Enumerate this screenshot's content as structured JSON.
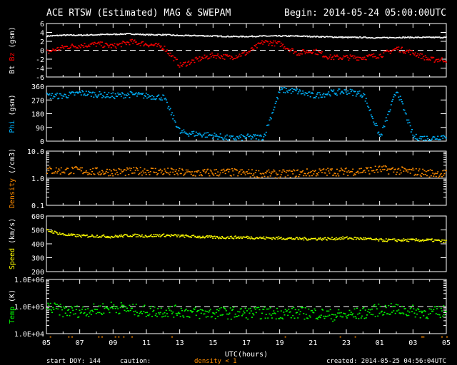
{
  "header": {
    "title": "ACE RTSW (Estimated) MAG & SWEPAM",
    "begin": "Begin: 2014-05-24 05:00:00UTC"
  },
  "footer": {
    "start_doy": "start DOY: 144",
    "caution": "caution:",
    "caution_value": "density < 1",
    "created": "created: 2014-05-25 04:56:04UTC"
  },
  "colors": {
    "bt": "#ffffff",
    "bz": "#ff0000",
    "phi": "#00b4ff",
    "density": "#ff8c00",
    "speed": "#ffff00",
    "temp": "#00ff00"
  },
  "chart_data": [
    {
      "type": "scatter",
      "name": "magnetic-field",
      "ylabel_parts": [
        "Bt",
        "Bz",
        "(gsm)"
      ],
      "ylim": [
        -6,
        6
      ],
      "yticks": [
        "6",
        "4",
        "2",
        "0",
        "-2",
        "-4",
        "-6"
      ],
      "ytick_values": [
        6,
        4,
        2,
        0,
        -2,
        -4,
        -6
      ],
      "reference_line": 0,
      "series": [
        {
          "name": "Bt",
          "color": "#ffffff",
          "hourly": [
            3.3,
            3.5,
            3.5,
            3.6,
            3.7,
            3.8,
            3.6,
            3.6,
            3.4,
            3.4,
            3.3,
            3.2,
            3.2,
            3.3,
            3.3,
            3.3,
            3.2,
            3.1,
            3.0,
            3.0,
            2.9,
            3.0,
            3.0,
            3.0,
            3.0
          ]
        },
        {
          "name": "Bz",
          "color": "#ff0000",
          "hourly": [
            -0.3,
            0.8,
            1.2,
            1.5,
            1.0,
            2.0,
            1.5,
            0.8,
            -3.3,
            -2.0,
            -1.0,
            -1.5,
            -0.5,
            2.0,
            1.5,
            -0.5,
            0.0,
            -1.5,
            -1.5,
            -1.5,
            -1.0,
            0.5,
            -0.5,
            -2.0,
            -2.0
          ]
        }
      ]
    },
    {
      "type": "scatter",
      "name": "phi",
      "ylabel_parts": [
        "Phi",
        "(gsm)"
      ],
      "ylim": [
        0,
        360
      ],
      "yticks": [
        "360",
        "270",
        "180",
        "90",
        "0"
      ],
      "ytick_values": [
        360,
        270,
        180,
        90,
        0
      ],
      "series": [
        {
          "name": "Phi",
          "color": "#00b4ff",
          "hourly": [
            300,
            300,
            320,
            310,
            300,
            310,
            300,
            290,
            60,
            50,
            40,
            20,
            30,
            30,
            340,
            330,
            300,
            320,
            330,
            310,
            30,
            340,
            30,
            20,
            40
          ]
        }
      ]
    },
    {
      "type": "scatter",
      "name": "density",
      "ylabel_parts": [
        "Density",
        "(/cm3)"
      ],
      "yscale": "log",
      "ylim": [
        0.1,
        10
      ],
      "yticks": [
        "10.0",
        "1.0",
        "0.1"
      ],
      "ytick_values": [
        10,
        1,
        0.1
      ],
      "reference_line": 1,
      "series": [
        {
          "name": "Density",
          "color": "#ff8c00",
          "hourly": [
            2.0,
            2.0,
            2.0,
            1.8,
            1.8,
            1.8,
            2.0,
            1.8,
            1.7,
            1.6,
            1.7,
            1.7,
            1.6,
            1.5,
            1.5,
            1.6,
            1.7,
            1.8,
            1.8,
            2.0,
            2.2,
            2.0,
            1.8,
            1.6,
            1.5
          ]
        }
      ]
    },
    {
      "type": "scatter",
      "name": "speed",
      "ylabel_parts": [
        "Speed",
        "(km/s)"
      ],
      "ylim": [
        200,
        600
      ],
      "yticks": [
        "600",
        "500",
        "400",
        "300",
        "200"
      ],
      "ytick_values": [
        600,
        500,
        400,
        300,
        200
      ],
      "series": [
        {
          "name": "Speed",
          "color": "#ffff00",
          "hourly": [
            500,
            470,
            460,
            460,
            455,
            465,
            460,
            465,
            460,
            455,
            450,
            450,
            450,
            445,
            445,
            440,
            440,
            440,
            445,
            440,
            430,
            430,
            430,
            430,
            420
          ]
        }
      ]
    },
    {
      "type": "scatter",
      "name": "temperature",
      "ylabel_parts": [
        "Temp",
        "(K)"
      ],
      "yscale": "log",
      "ylim": [
        10000,
        1000000
      ],
      "yticks": [
        "1.0E+06",
        "1.0E+05",
        "1.0E+04"
      ],
      "ytick_values": [
        1000000,
        100000,
        10000
      ],
      "reference_line": 100000,
      "series": [
        {
          "name": "Temp",
          "color": "#00ff00",
          "hourly": [
            100000,
            70000,
            70000,
            80000,
            100000,
            80000,
            70000,
            70000,
            70000,
            60000,
            60000,
            60000,
            60000,
            60000,
            60000,
            60000,
            60000,
            50000,
            50000,
            60000,
            80000,
            80000,
            70000,
            60000,
            70000
          ]
        }
      ]
    }
  ],
  "xaxis": {
    "label": "UTC(hours)",
    "range_hours": [
      0,
      24
    ],
    "ticks": [
      "05",
      "07",
      "09",
      "11",
      "13",
      "15",
      "17",
      "19",
      "21",
      "23",
      "01",
      "03",
      "05"
    ]
  }
}
